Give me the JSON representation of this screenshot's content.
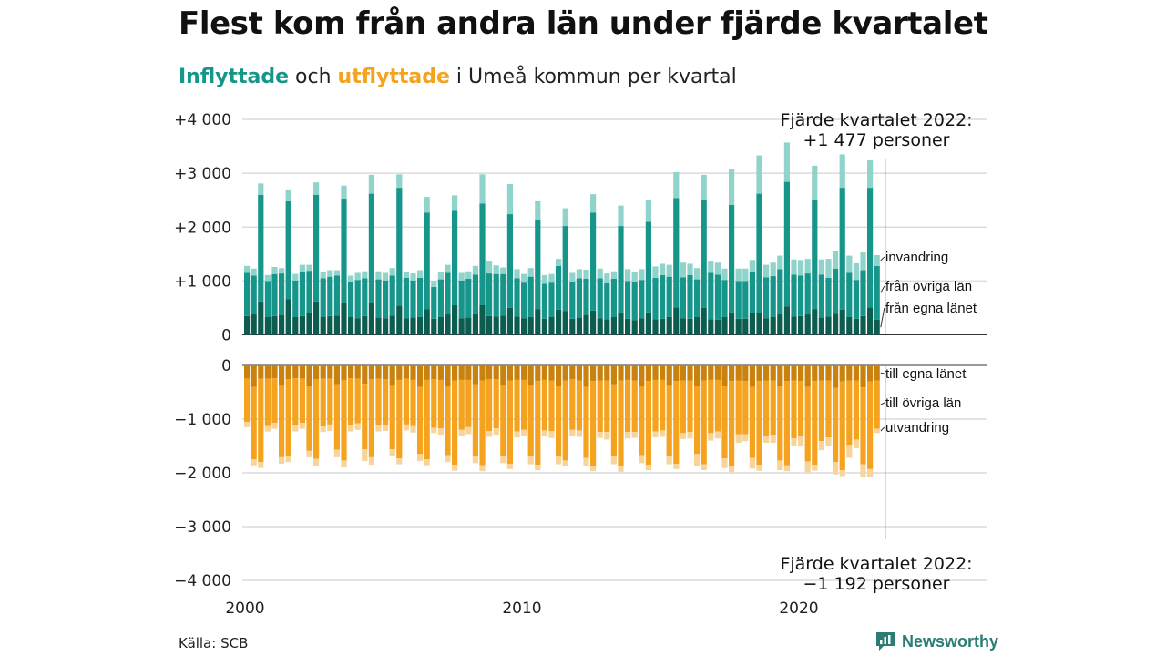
{
  "title": "Flest kom från andra län under fjärde kvartalet",
  "subtitle": {
    "in_word": "Inflyttade",
    "connector": "och",
    "out_word": "utflyttade",
    "rest": "i Umeå kommun per kvartal"
  },
  "colors": {
    "in_local": "#0d5c50",
    "in_other": "#16968a",
    "in_immig": "#8fd3ca",
    "out_local": "#c9820e",
    "out_other": "#f5a21f",
    "out_emig": "#f7d49a",
    "in_accent": "#16968a",
    "out_accent": "#f5a21f",
    "brand": "#2a7d73"
  },
  "source": "Källa: SCB",
  "brand_name": "Newsworthy",
  "chart_data": [
    {
      "type": "bar",
      "subtype": "stacked",
      "title": "Inflyttade",
      "x_start": "2000 Q1",
      "x_end": "2022 Q4",
      "x_ticks": [
        "2000",
        "2010",
        "2020"
      ],
      "y_ticks": [
        "+4 000",
        "+3 000",
        "+2 000",
        "+1 000",
        "0"
      ],
      "ylim": [
        0,
        4000
      ],
      "grid": true,
      "annotation": {
        "line1": "Fjärde kvartalet 2022:",
        "line2": "+1 477 personer"
      },
      "series": [
        {
          "name": "från egna länet",
          "values": [
            350,
            380,
            620,
            330,
            350,
            370,
            660,
            330,
            350,
            400,
            620,
            330,
            350,
            360,
            590,
            330,
            310,
            350,
            590,
            320,
            310,
            360,
            540,
            310,
            320,
            330,
            480,
            300,
            330,
            380,
            550,
            310,
            320,
            380,
            550,
            350,
            340,
            360,
            500,
            340,
            310,
            330,
            480,
            300,
            330,
            470,
            440,
            300,
            320,
            370,
            450,
            310,
            290,
            330,
            420,
            300,
            270,
            310,
            420,
            290,
            300,
            330,
            510,
            310,
            300,
            330,
            500,
            290,
            280,
            330,
            420,
            300,
            300,
            410,
            410,
            310,
            330,
            380,
            530,
            340,
            350,
            380,
            480,
            320,
            340,
            390,
            470,
            330,
            300,
            350,
            510,
            280
          ]
        },
        {
          "name": "från övriga län",
          "values": [
            800,
            720,
            1980,
            670,
            780,
            770,
            1820,
            680,
            820,
            790,
            1980,
            720,
            730,
            740,
            1940,
            650,
            710,
            700,
            2030,
            710,
            700,
            740,
            2190,
            750,
            690,
            730,
            1790,
            590,
            700,
            770,
            1750,
            700,
            720,
            740,
            1890,
            790,
            790,
            770,
            1740,
            710,
            660,
            750,
            1650,
            650,
            640,
            810,
            1580,
            680,
            730,
            670,
            1820,
            740,
            670,
            710,
            1600,
            700,
            710,
            710,
            1680,
            770,
            810,
            750,
            2030,
            760,
            810,
            700,
            2010,
            860,
            840,
            690,
            1990,
            700,
            700,
            760,
            2210,
            760,
            760,
            840,
            2310,
            780,
            750,
            760,
            2020,
            800,
            720,
            840,
            2260,
            820,
            720,
            850,
            2220,
            1000
          ]
        },
        {
          "name": "invandring",
          "values": [
            130,
            130,
            210,
            110,
            130,
            100,
            220,
            120,
            130,
            110,
            230,
            120,
            120,
            100,
            240,
            120,
            130,
            130,
            350,
            150,
            140,
            140,
            250,
            110,
            130,
            140,
            290,
            110,
            140,
            150,
            290,
            140,
            140,
            160,
            540,
            220,
            160,
            120,
            560,
            170,
            160,
            160,
            350,
            160,
            160,
            130,
            330,
            170,
            170,
            170,
            340,
            180,
            180,
            140,
            380,
            220,
            190,
            200,
            400,
            210,
            210,
            220,
            480,
            270,
            210,
            210,
            460,
            210,
            220,
            210,
            670,
            230,
            230,
            220,
            710,
            230,
            250,
            250,
            730,
            280,
            290,
            270,
            640,
            280,
            350,
            330,
            620,
            320,
            310,
            330,
            510,
            200
          ]
        }
      ]
    },
    {
      "type": "bar",
      "subtype": "stacked",
      "title": "Utflyttade",
      "x_start": "2000 Q1",
      "x_end": "2022 Q4",
      "x_ticks": [
        "2000",
        "2010",
        "2020"
      ],
      "y_ticks": [
        "0",
        "−1 000",
        "−2 000",
        "−3 000",
        "−4 000"
      ],
      "ylim": [
        -4000,
        0
      ],
      "grid": true,
      "annotation": {
        "line1": "Fjärde kvartalet 2022:",
        "line2": "−1 192 personer"
      },
      "series": [
        {
          "name": "till egna länet",
          "values": [
            -250,
            -400,
            -250,
            -250,
            -240,
            -380,
            -260,
            -240,
            -250,
            -390,
            -260,
            -250,
            -250,
            -370,
            -270,
            -240,
            -250,
            -360,
            -260,
            -250,
            -260,
            -380,
            -270,
            -250,
            -270,
            -400,
            -270,
            -260,
            -270,
            -390,
            -280,
            -270,
            -270,
            -370,
            -280,
            -260,
            -260,
            -380,
            -280,
            -270,
            -270,
            -380,
            -290,
            -270,
            -280,
            -390,
            -280,
            -260,
            -280,
            -400,
            -290,
            -280,
            -280,
            -370,
            -280,
            -270,
            -280,
            -390,
            -290,
            -270,
            -270,
            -380,
            -290,
            -280,
            -280,
            -390,
            -280,
            -270,
            -270,
            -390,
            -290,
            -280,
            -290,
            -400,
            -290,
            -280,
            -280,
            -390,
            -290,
            -280,
            -290,
            -400,
            -290,
            -280,
            -280,
            -420,
            -300,
            -280,
            -280,
            -410,
            -300,
            -280
          ]
        },
        {
          "name": "till övriga län",
          "values": [
            -800,
            -1350,
            -1550,
            -880,
            -830,
            -1330,
            -1420,
            -880,
            -820,
            -1200,
            -1480,
            -890,
            -850,
            -1200,
            -1500,
            -880,
            -830,
            -1200,
            -1450,
            -870,
            -850,
            -1180,
            -1460,
            -850,
            -860,
            -1250,
            -1480,
            -900,
            -900,
            -1280,
            -1570,
            -930,
            -880,
            -1330,
            -1580,
            -960,
            -910,
            -1300,
            -1550,
            -960,
            -930,
            -1300,
            -1560,
            -940,
            -940,
            -1300,
            -1490,
            -940,
            -930,
            -1320,
            -1580,
            -960,
            -960,
            -1310,
            -1600,
            -970,
            -960,
            -1280,
            -1560,
            -960,
            -940,
            -1310,
            -1540,
            -980,
            -960,
            -1260,
            -1560,
            -990,
            -960,
            -1340,
            -1590,
            -1000,
            -990,
            -1320,
            -1560,
            -1030,
            -1010,
            -1380,
            -1570,
            -1080,
            -1030,
            -1390,
            -1560,
            -1130,
            -1060,
            -1380,
            -1650,
            -1200,
            -1100,
            -1430,
            -1630,
            -900
          ]
        },
        {
          "name": "utvandring",
          "values": [
            -100,
            -110,
            -110,
            -100,
            -110,
            -120,
            -120,
            -110,
            -110,
            -120,
            -130,
            -100,
            -120,
            -140,
            -130,
            -110,
            -120,
            -220,
            -140,
            -110,
            -110,
            -130,
            -110,
            -110,
            -120,
            -130,
            -110,
            -100,
            -120,
            -130,
            -110,
            -110,
            -130,
            -120,
            -110,
            -110,
            -120,
            -140,
            -100,
            -110,
            -120,
            -160,
            -100,
            -110,
            -130,
            -150,
            -100,
            -120,
            -120,
            -160,
            -100,
            -110,
            -140,
            -160,
            -100,
            -120,
            -110,
            -150,
            -100,
            -110,
            -120,
            -150,
            -100,
            -110,
            -120,
            -220,
            -110,
            -140,
            -130,
            -180,
            -110,
            -160,
            -130,
            -200,
            -110,
            -130,
            -150,
            -180,
            -110,
            -130,
            -180,
            -200,
            -110,
            -170,
            -160,
            -230,
            -110,
            -240,
            -160,
            -230,
            -150,
            -80
          ]
        }
      ]
    }
  ]
}
